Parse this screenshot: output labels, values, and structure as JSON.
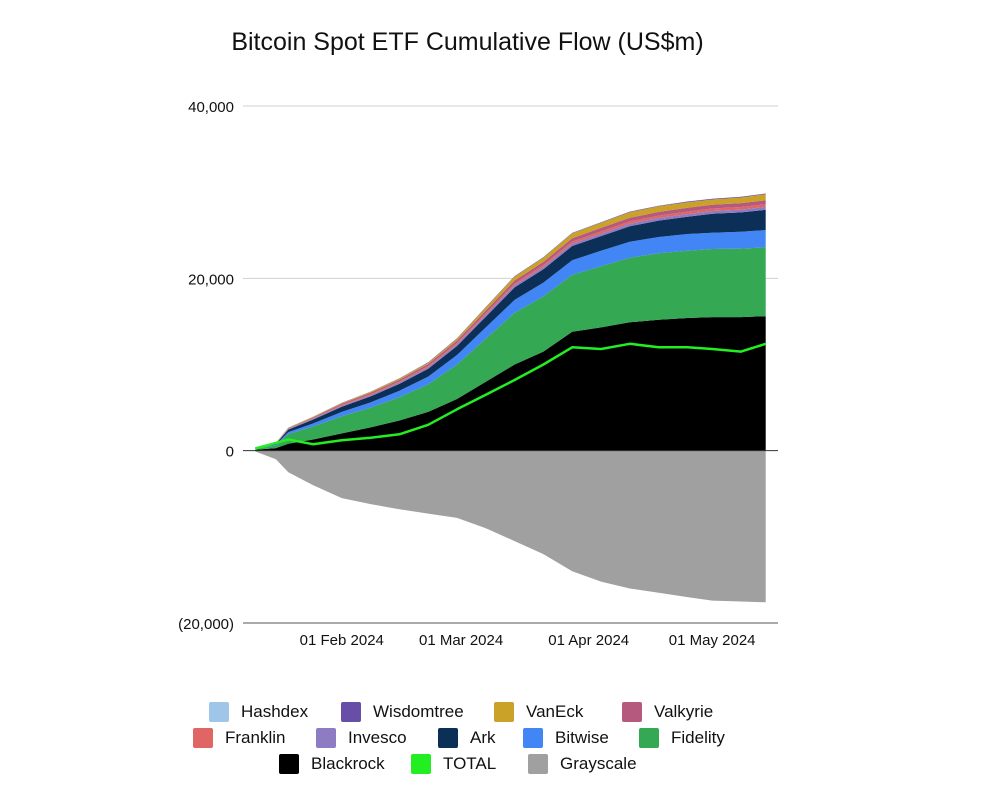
{
  "chart_data": {
    "type": "area",
    "title": "Bitcoin Spot ETF Cumulative Flow (US$m)",
    "xlabel": "",
    "ylabel": "",
    "ylim": [
      -20000,
      40000
    ],
    "y_ticks": [
      {
        "value": 40000,
        "label": "40,000"
      },
      {
        "value": 20000,
        "label": "20,000"
      },
      {
        "value": 0,
        "label": "0"
      },
      {
        "value": -20000,
        "label": "(20,000)"
      }
    ],
    "x_ticks": [
      {
        "date": "2024-02-01",
        "label": "01 Feb 2024"
      },
      {
        "date": "2024-03-01",
        "label": "01 Mar 2024"
      },
      {
        "date": "2024-04-01",
        "label": "01 Apr 2024"
      },
      {
        "date": "2024-05-01",
        "label": "01 May 2024"
      }
    ],
    "grid": "horizontal",
    "legend_position": "bottom",
    "x": [
      "2024-01-11",
      "2024-01-16",
      "2024-01-19",
      "2024-01-25",
      "2024-02-01",
      "2024-02-08",
      "2024-02-15",
      "2024-02-22",
      "2024-02-29",
      "2024-03-07",
      "2024-03-14",
      "2024-03-21",
      "2024-03-28",
      "2024-04-04",
      "2024-04-11",
      "2024-04-18",
      "2024-04-25",
      "2024-05-01",
      "2024-05-08",
      "2024-05-14"
    ],
    "series": [
      {
        "name": "Blackrock",
        "color": "#000000",
        "stack": "positive",
        "values": [
          100,
          300,
          800,
          1300,
          2000,
          2700,
          3500,
          4500,
          6000,
          8000,
          10000,
          11500,
          13800,
          14300,
          14900,
          15200,
          15400,
          15500,
          15500,
          15600
        ]
      },
      {
        "name": "Fidelity",
        "color": "#34a853",
        "stack": "positive",
        "values": [
          100,
          300,
          1100,
          1500,
          2000,
          2300,
          2700,
          3200,
          4000,
          5000,
          6000,
          6400,
          6600,
          7100,
          7500,
          7700,
          7800,
          7900,
          7950,
          8000
        ]
      },
      {
        "name": "Bitwise",
        "color": "#4285f4",
        "stack": "positive",
        "values": [
          30,
          100,
          250,
          350,
          500,
          600,
          750,
          900,
          1100,
          1300,
          1500,
          1600,
          1700,
          1800,
          1850,
          1900,
          1950,
          1900,
          1950,
          2000
        ]
      },
      {
        "name": "Ark",
        "color": "#0b2f57",
        "stack": "positive",
        "values": [
          30,
          100,
          300,
          450,
          600,
          700,
          800,
          900,
          1050,
          1250,
          1450,
          1550,
          1650,
          1700,
          1800,
          1900,
          2000,
          2200,
          2250,
          2350
        ]
      },
      {
        "name": "Invesco",
        "color": "#8e7cc3",
        "stack": "positive",
        "values": [
          10,
          30,
          60,
          90,
          120,
          140,
          160,
          180,
          200,
          220,
          240,
          260,
          270,
          280,
          290,
          300,
          310,
          320,
          330,
          340
        ]
      },
      {
        "name": "Franklin",
        "color": "#e06666",
        "stack": "positive",
        "values": [
          10,
          20,
          40,
          60,
          80,
          100,
          120,
          140,
          160,
          180,
          200,
          220,
          240,
          260,
          270,
          280,
          290,
          290,
          300,
          310
        ]
      },
      {
        "name": "Valkyrie",
        "color": "#b55a7e",
        "stack": "positive",
        "values": [
          10,
          30,
          60,
          100,
          140,
          180,
          210,
          240,
          280,
          320,
          360,
          380,
          400,
          410,
          420,
          430,
          440,
          440,
          450,
          460
        ]
      },
      {
        "name": "VanEck",
        "color": "#c9a227",
        "stack": "positive",
        "values": [
          10,
          30,
          50,
          70,
          90,
          110,
          130,
          150,
          200,
          350,
          450,
          500,
          550,
          600,
          650,
          650,
          650,
          600,
          650,
          700
        ]
      },
      {
        "name": "Wisdomtree",
        "color": "#674ea7",
        "stack": "positive",
        "values": [
          5,
          10,
          15,
          20,
          25,
          30,
          35,
          40,
          45,
          50,
          55,
          60,
          65,
          70,
          70,
          75,
          75,
          75,
          80,
          80
        ]
      },
      {
        "name": "Hashdex",
        "color": "#9fc5e8",
        "stack": "positive",
        "values": [
          5,
          5,
          10,
          10,
          10,
          10,
          10,
          10,
          10,
          10,
          10,
          10,
          10,
          10,
          10,
          10,
          10,
          10,
          10,
          10
        ]
      },
      {
        "name": "Grayscale",
        "color": "#a0a0a0",
        "stack": "negative",
        "values": [
          -100,
          -1000,
          -2500,
          -4000,
          -5500,
          -6200,
          -6800,
          -7300,
          -7800,
          -9000,
          -10500,
          -12000,
          -14000,
          -15200,
          -16000,
          -16500,
          -17000,
          -17400,
          -17500,
          -17600
        ]
      },
      {
        "name": "TOTAL",
        "color": "#22ee22",
        "type": "line",
        "values": [
          250,
          900,
          1300,
          750,
          1200,
          1500,
          1900,
          3000,
          4800,
          6500,
          8200,
          10000,
          12000,
          11800,
          12400,
          12000,
          12000,
          11800,
          11500,
          12400
        ]
      }
    ]
  },
  "legend": {
    "rows": [
      [
        {
          "name": "Hashdex",
          "color": "#9fc5e8"
        },
        {
          "name": "Wisdomtree",
          "color": "#674ea7"
        },
        {
          "name": "VanEck",
          "color": "#c9a227"
        },
        {
          "name": "Valkyrie",
          "color": "#b55a7e"
        }
      ],
      [
        {
          "name": "Franklin",
          "color": "#e06666"
        },
        {
          "name": "Invesco",
          "color": "#8e7cc3"
        },
        {
          "name": "Ark",
          "color": "#0b2f57"
        },
        {
          "name": "Bitwise",
          "color": "#4285f4"
        },
        {
          "name": "Fidelity",
          "color": "#34a853"
        }
      ],
      [
        {
          "name": "Blackrock",
          "color": "#000000"
        },
        {
          "name": "TOTAL",
          "color": "#22ee22"
        },
        {
          "name": "Grayscale",
          "color": "#a0a0a0"
        }
      ]
    ]
  }
}
